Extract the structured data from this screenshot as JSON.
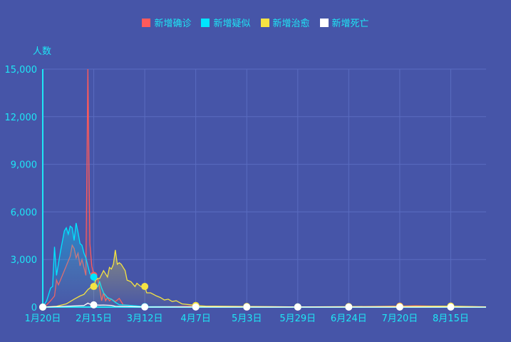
{
  "chart_data": {
    "type": "line",
    "ylabel": "人数",
    "ylim": [
      0,
      15000
    ],
    "yticks": [
      "0",
      "3,000",
      "6,000",
      "9,000",
      "12,000",
      "15,000"
    ],
    "xlim": [
      "1/20",
      "9/2"
    ],
    "xticks": [
      "1月20日",
      "2月15日",
      "3月12日",
      "4月7日",
      "5月3日",
      "5月29日",
      "6月24日",
      "7月20日",
      "8月15日"
    ],
    "grid": true,
    "legend_position": "top",
    "series": [
      {
        "name": "新增确诊",
        "color": "#ff5a5a",
        "points": [
          [
            "1/20",
            0
          ],
          [
            "1/22",
            150
          ],
          [
            "1/24",
            400
          ],
          [
            "1/26",
            700
          ],
          [
            "1/27",
            1700
          ],
          [
            "1/28",
            1400
          ],
          [
            "1/30",
            2000
          ],
          [
            "2/1",
            2600
          ],
          [
            "2/3",
            3200
          ],
          [
            "2/4",
            3900
          ],
          [
            "2/5",
            3700
          ],
          [
            "2/6",
            3100
          ],
          [
            "2/7",
            3400
          ],
          [
            "2/8",
            2600
          ],
          [
            "2/9",
            3000
          ],
          [
            "2/10",
            2500
          ],
          [
            "2/11",
            2000
          ],
          [
            "2/12",
            15000
          ],
          [
            "2/13",
            4000
          ],
          [
            "2/14",
            2600
          ],
          [
            "2/15",
            2000
          ],
          [
            "2/16",
            1900
          ],
          [
            "2/17",
            1800
          ],
          [
            "2/18",
            1200
          ],
          [
            "2/19",
            400
          ],
          [
            "2/20",
            900
          ],
          [
            "2/21",
            400
          ],
          [
            "2/22",
            600
          ],
          [
            "2/23",
            400
          ],
          [
            "2/24",
            500
          ],
          [
            "2/26",
            350
          ],
          [
            "2/27",
            450
          ],
          [
            "2/28",
            550
          ],
          [
            "3/1",
            150
          ],
          [
            "3/5",
            100
          ],
          [
            "3/12",
            20
          ],
          [
            "4/7",
            60
          ],
          [
            "5/3",
            10
          ],
          [
            "6/24",
            20
          ],
          [
            "7/20",
            60
          ],
          [
            "7/28",
            80
          ],
          [
            "8/15",
            30
          ],
          [
            "9/2",
            10
          ]
        ]
      },
      {
        "name": "新增疑似",
        "color": "#00e5ff",
        "points": [
          [
            "1/20",
            0
          ],
          [
            "1/22",
            400
          ],
          [
            "1/24",
            1200
          ],
          [
            "1/25",
            1300
          ],
          [
            "1/26",
            3800
          ],
          [
            "1/27",
            2000
          ],
          [
            "1/29",
            3500
          ],
          [
            "1/31",
            4800
          ],
          [
            "2/1",
            5000
          ],
          [
            "2/2",
            4600
          ],
          [
            "2/3",
            5100
          ],
          [
            "2/4",
            5000
          ],
          [
            "2/5",
            4200
          ],
          [
            "2/6",
            5300
          ],
          [
            "2/7",
            4700
          ],
          [
            "2/8",
            4000
          ],
          [
            "2/9",
            3900
          ],
          [
            "2/10",
            3400
          ],
          [
            "2/11",
            3100
          ],
          [
            "2/12",
            2600
          ],
          [
            "2/13",
            2100
          ],
          [
            "2/14",
            2000
          ],
          [
            "2/15",
            1900
          ],
          [
            "2/16",
            1400
          ],
          [
            "2/17",
            1300
          ],
          [
            "2/18",
            1600
          ],
          [
            "2/19",
            1200
          ],
          [
            "2/20",
            900
          ],
          [
            "2/22",
            600
          ],
          [
            "2/24",
            500
          ],
          [
            "2/26",
            300
          ],
          [
            "2/28",
            150
          ],
          [
            "3/3",
            120
          ],
          [
            "3/12",
            30
          ],
          [
            "4/7",
            20
          ],
          [
            "9/2",
            5
          ]
        ]
      },
      {
        "name": "新增治愈",
        "color": "#f5e342",
        "points": [
          [
            "1/20",
            0
          ],
          [
            "1/27",
            50
          ],
          [
            "2/1",
            200
          ],
          [
            "2/5",
            500
          ],
          [
            "2/8",
            700
          ],
          [
            "2/10",
            800
          ],
          [
            "2/12",
            1100
          ],
          [
            "2/14",
            1300
          ],
          [
            "2/15",
            1300
          ],
          [
            "2/16",
            1700
          ],
          [
            "2/17",
            1800
          ],
          [
            "2/18",
            1800
          ],
          [
            "2/20",
            2300
          ],
          [
            "2/21",
            2100
          ],
          [
            "2/22",
            1900
          ],
          [
            "2/23",
            2500
          ],
          [
            "2/24",
            2400
          ],
          [
            "2/25",
            2700
          ],
          [
            "2/26",
            3600
          ],
          [
            "2/27",
            2700
          ],
          [
            "2/28",
            2800
          ],
          [
            "2/29",
            2700
          ],
          [
            "3/1",
            2500
          ],
          [
            "3/2",
            2300
          ],
          [
            "3/3",
            1700
          ],
          [
            "3/5",
            1600
          ],
          [
            "3/7",
            1300
          ],
          [
            "3/8",
            1500
          ],
          [
            "3/10",
            1300
          ],
          [
            "3/12",
            1300
          ],
          [
            "3/13",
            900
          ],
          [
            "3/15",
            900
          ],
          [
            "3/18",
            700
          ],
          [
            "3/20",
            600
          ],
          [
            "3/22",
            450
          ],
          [
            "3/24",
            500
          ],
          [
            "3/26",
            350
          ],
          [
            "3/28",
            400
          ],
          [
            "3/31",
            200
          ],
          [
            "4/4",
            150
          ],
          [
            "4/7",
            100
          ],
          [
            "4/12",
            60
          ],
          [
            "5/3",
            40
          ],
          [
            "5/29",
            10
          ],
          [
            "8/15",
            60
          ],
          [
            "9/2",
            20
          ]
        ]
      },
      {
        "name": "新增死亡",
        "color": "#ffffff",
        "points": [
          [
            "1/20",
            0
          ],
          [
            "1/30",
            40
          ],
          [
            "2/5",
            70
          ],
          [
            "2/10",
            100
          ],
          [
            "2/12",
            250
          ],
          [
            "2/14",
            130
          ],
          [
            "2/15",
            140
          ],
          [
            "2/18",
            120
          ],
          [
            "2/20",
            130
          ],
          [
            "2/24",
            110
          ],
          [
            "2/26",
            50
          ],
          [
            "3/5",
            30
          ],
          [
            "3/12",
            10
          ],
          [
            "4/7",
            5
          ],
          [
            "9/2",
            0
          ]
        ]
      }
    ]
  }
}
